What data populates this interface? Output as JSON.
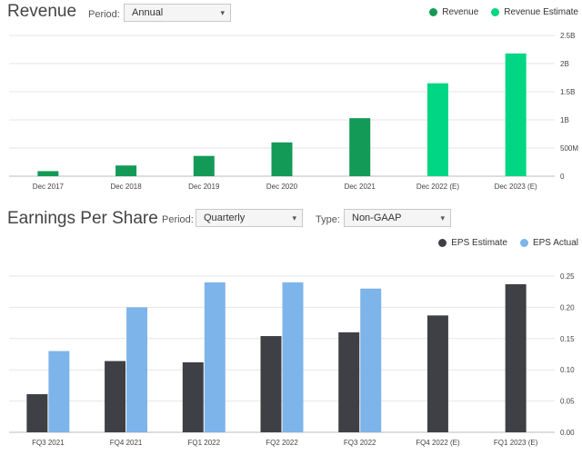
{
  "revenue": {
    "title": "Revenue",
    "period_label": "Period:",
    "period_value": "Annual",
    "legend": [
      {
        "label": "Revenue",
        "color": "#139a57"
      },
      {
        "label": "Revenue Estimate",
        "color": "#00d684"
      }
    ]
  },
  "eps": {
    "title": "Earnings Per Share",
    "period_label": "Period:",
    "period_value": "Quarterly",
    "type_label": "Type:",
    "type_value": "Non-GAAP",
    "legend": [
      {
        "label": "EPS Estimate",
        "color": "#3f4045"
      },
      {
        "label": "EPS Actual",
        "color": "#7db4ea"
      }
    ]
  },
  "icons": {
    "caret": "▾"
  },
  "chart_data": [
    {
      "type": "bar",
      "title": "Revenue",
      "categories": [
        "Dec 2017",
        "Dec 2018",
        "Dec 2019",
        "Dec 2020",
        "Dec 2021",
        "Dec 2022 (E)",
        "Dec 2023 (E)"
      ],
      "series": [
        {
          "name": "Revenue",
          "color": "#139a57",
          "values": [
            0.09,
            0.19,
            0.36,
            0.6,
            1.03,
            null,
            null
          ]
        },
        {
          "name": "Revenue Estimate",
          "color": "#00d684",
          "values": [
            null,
            null,
            null,
            null,
            null,
            1.65,
            2.18
          ]
        }
      ],
      "units": "B",
      "ylim": [
        0,
        2.5
      ],
      "yticks": [
        {
          "value": 0,
          "label": "0"
        },
        {
          "value": 0.5,
          "label": "500M"
        },
        {
          "value": 1,
          "label": "1B"
        },
        {
          "value": 1.5,
          "label": "1.5B"
        },
        {
          "value": 2,
          "label": "2B"
        },
        {
          "value": 2.5,
          "label": "2.5B"
        }
      ],
      "grid": true,
      "legend_position": "top-right"
    },
    {
      "type": "bar",
      "title": "Earnings Per Share",
      "categories": [
        "FQ3 2021",
        "FQ4 2021",
        "FQ1 2022",
        "FQ2 2022",
        "FQ3 2022",
        "FQ4 2022 (E)",
        "FQ1 2023 (E)"
      ],
      "series": [
        {
          "name": "EPS Estimate",
          "color": "#3f4045",
          "values": [
            0.061,
            0.114,
            0.112,
            0.154,
            0.16,
            0.187,
            0.237
          ]
        },
        {
          "name": "EPS Actual",
          "color": "#7db4ea",
          "values": [
            0.13,
            0.2,
            0.24,
            0.24,
            0.23,
            null,
            null
          ]
        }
      ],
      "ylim": [
        0,
        0.25
      ],
      "yticks": [
        {
          "value": 0,
          "label": "0.00"
        },
        {
          "value": 0.05,
          "label": "0.05"
        },
        {
          "value": 0.1,
          "label": "0.10"
        },
        {
          "value": 0.15,
          "label": "0.15"
        },
        {
          "value": 0.2,
          "label": "0.20"
        },
        {
          "value": 0.25,
          "label": "0.25"
        }
      ],
      "grid": true,
      "legend_position": "top-right"
    }
  ]
}
